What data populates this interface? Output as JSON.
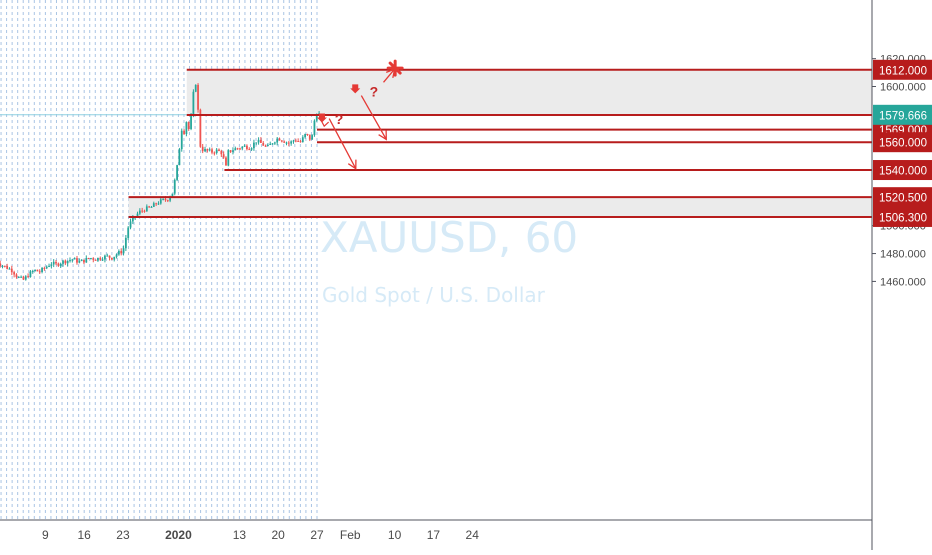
{
  "chart_data": {
    "type": "candlestick",
    "symbol": "XAUUSD",
    "interval": "60",
    "watermark_symbol": "XAUUSD, 60",
    "watermark_desc": "Gold Spot / U.S. Dollar",
    "ylim": [
      1443,
      1625
    ],
    "y_tick_labels": [
      "1620.000",
      "1600.000",
      "1500.000",
      "1480.000",
      "1460.000"
    ],
    "y_ticks": [
      1620,
      1600,
      1500,
      1480,
      1460
    ],
    "x_tick_labels": [
      "9",
      "16",
      "23",
      "2020",
      "13",
      "20",
      "27",
      "Feb",
      "10",
      "17",
      "24"
    ],
    "x_tick_days": [
      9,
      16,
      23,
      33,
      44,
      51,
      58,
      64,
      72,
      79,
      86
    ],
    "price_levels": [
      {
        "label": "1612.000",
        "value": 1612.0,
        "x_start_day": 34.5
      },
      {
        "label": "1579.500",
        "value": 1579.5,
        "x_start_day": 34.5
      },
      {
        "label": "1569.000",
        "value": 1569.0,
        "x_start_day": 58.0
      },
      {
        "label": "1560.000",
        "value": 1560.0,
        "x_start_day": 58.0
      },
      {
        "label": "1540.000",
        "value": 1540.0,
        "x_start_day": 41.3
      },
      {
        "label": "1520.500",
        "value": 1520.5,
        "x_start_day": 24.0
      },
      {
        "label": "1506.300",
        "value": 1506.3,
        "x_start_day": 24.0
      }
    ],
    "zones": [
      {
        "from": 1579.5,
        "to": 1612.0,
        "x_start_day": 34.5
      },
      {
        "from": 1506.3,
        "to": 1520.5,
        "x_start_day": 24.0
      }
    ],
    "current_price": {
      "label": "1579.666",
      "value": 1579.666
    },
    "price_path": [
      [
        0,
        1475
      ],
      [
        1,
        1472
      ],
      [
        2,
        1470
      ],
      [
        3,
        1468
      ],
      [
        4,
        1463
      ],
      [
        5,
        1461
      ],
      [
        6,
        1465
      ],
      [
        7,
        1468
      ],
      [
        8,
        1467
      ],
      [
        9,
        1470
      ],
      [
        10,
        1473
      ],
      [
        11,
        1472
      ],
      [
        12,
        1474
      ],
      [
        13,
        1475
      ],
      [
        14,
        1476
      ],
      [
        15,
        1474
      ],
      [
        16,
        1475
      ],
      [
        17,
        1477
      ],
      [
        18,
        1476
      ],
      [
        19,
        1477
      ],
      [
        20,
        1478
      ],
      [
        21,
        1477
      ],
      [
        22,
        1480
      ],
      [
        23,
        1482
      ],
      [
        24,
        1500
      ],
      [
        25,
        1506
      ],
      [
        26,
        1510
      ],
      [
        27,
        1512
      ],
      [
        28,
        1513
      ],
      [
        29,
        1516
      ],
      [
        30,
        1518
      ],
      [
        31,
        1519
      ],
      [
        32,
        1524
      ],
      [
        33,
        1548
      ],
      [
        33.5,
        1570
      ],
      [
        34,
        1567
      ],
      [
        34.5,
        1576
      ],
      [
        35,
        1567
      ],
      [
        35.5,
        1586
      ],
      [
        36,
        1608
      ],
      [
        36.5,
        1585
      ],
      [
        37,
        1555
      ],
      [
        38,
        1554
      ],
      [
        39,
        1553
      ],
      [
        40,
        1554
      ],
      [
        41,
        1552
      ],
      [
        41.5,
        1540
      ],
      [
        42,
        1553
      ],
      [
        43,
        1555
      ],
      [
        44,
        1556
      ],
      [
        45,
        1557
      ],
      [
        46,
        1556
      ],
      [
        47,
        1561
      ],
      [
        48,
        1559
      ],
      [
        49,
        1556
      ],
      [
        50,
        1560
      ],
      [
        51,
        1563
      ],
      [
        52,
        1561
      ],
      [
        53,
        1559
      ],
      [
        54,
        1562
      ],
      [
        55,
        1560
      ],
      [
        56,
        1566
      ],
      [
        57,
        1561
      ],
      [
        57.5,
        1575
      ],
      [
        58,
        1581
      ],
      [
        58.5,
        1579.7
      ]
    ],
    "annotations": [
      {
        "text": "?",
        "price": 1596.5,
        "day": 67.5
      },
      {
        "text": "?",
        "price": 1576.5,
        "day": 61.2
      }
    ],
    "projection_arrows": [
      {
        "from": [
          66.0,
          1593.5
        ],
        "to": [
          70.5,
          1562.0
        ]
      },
      {
        "from": [
          60.2,
          1577.0
        ],
        "to": [
          65.0,
          1541.0
        ]
      },
      {
        "from": [
          70.0,
          1603.0
        ],
        "to": [
          72.0,
          1612.5
        ]
      }
    ],
    "grid": "vertical-dashed",
    "colors": {
      "level": "#b71c1c",
      "zone": "#ebebeb",
      "candle_up": "#26a69a",
      "candle_down": "#ef5350",
      "watermark": "#d6eaf7",
      "current_price": "#26a69a",
      "axis_text": "#131722",
      "tick_text": "#4a4a4a"
    }
  }
}
